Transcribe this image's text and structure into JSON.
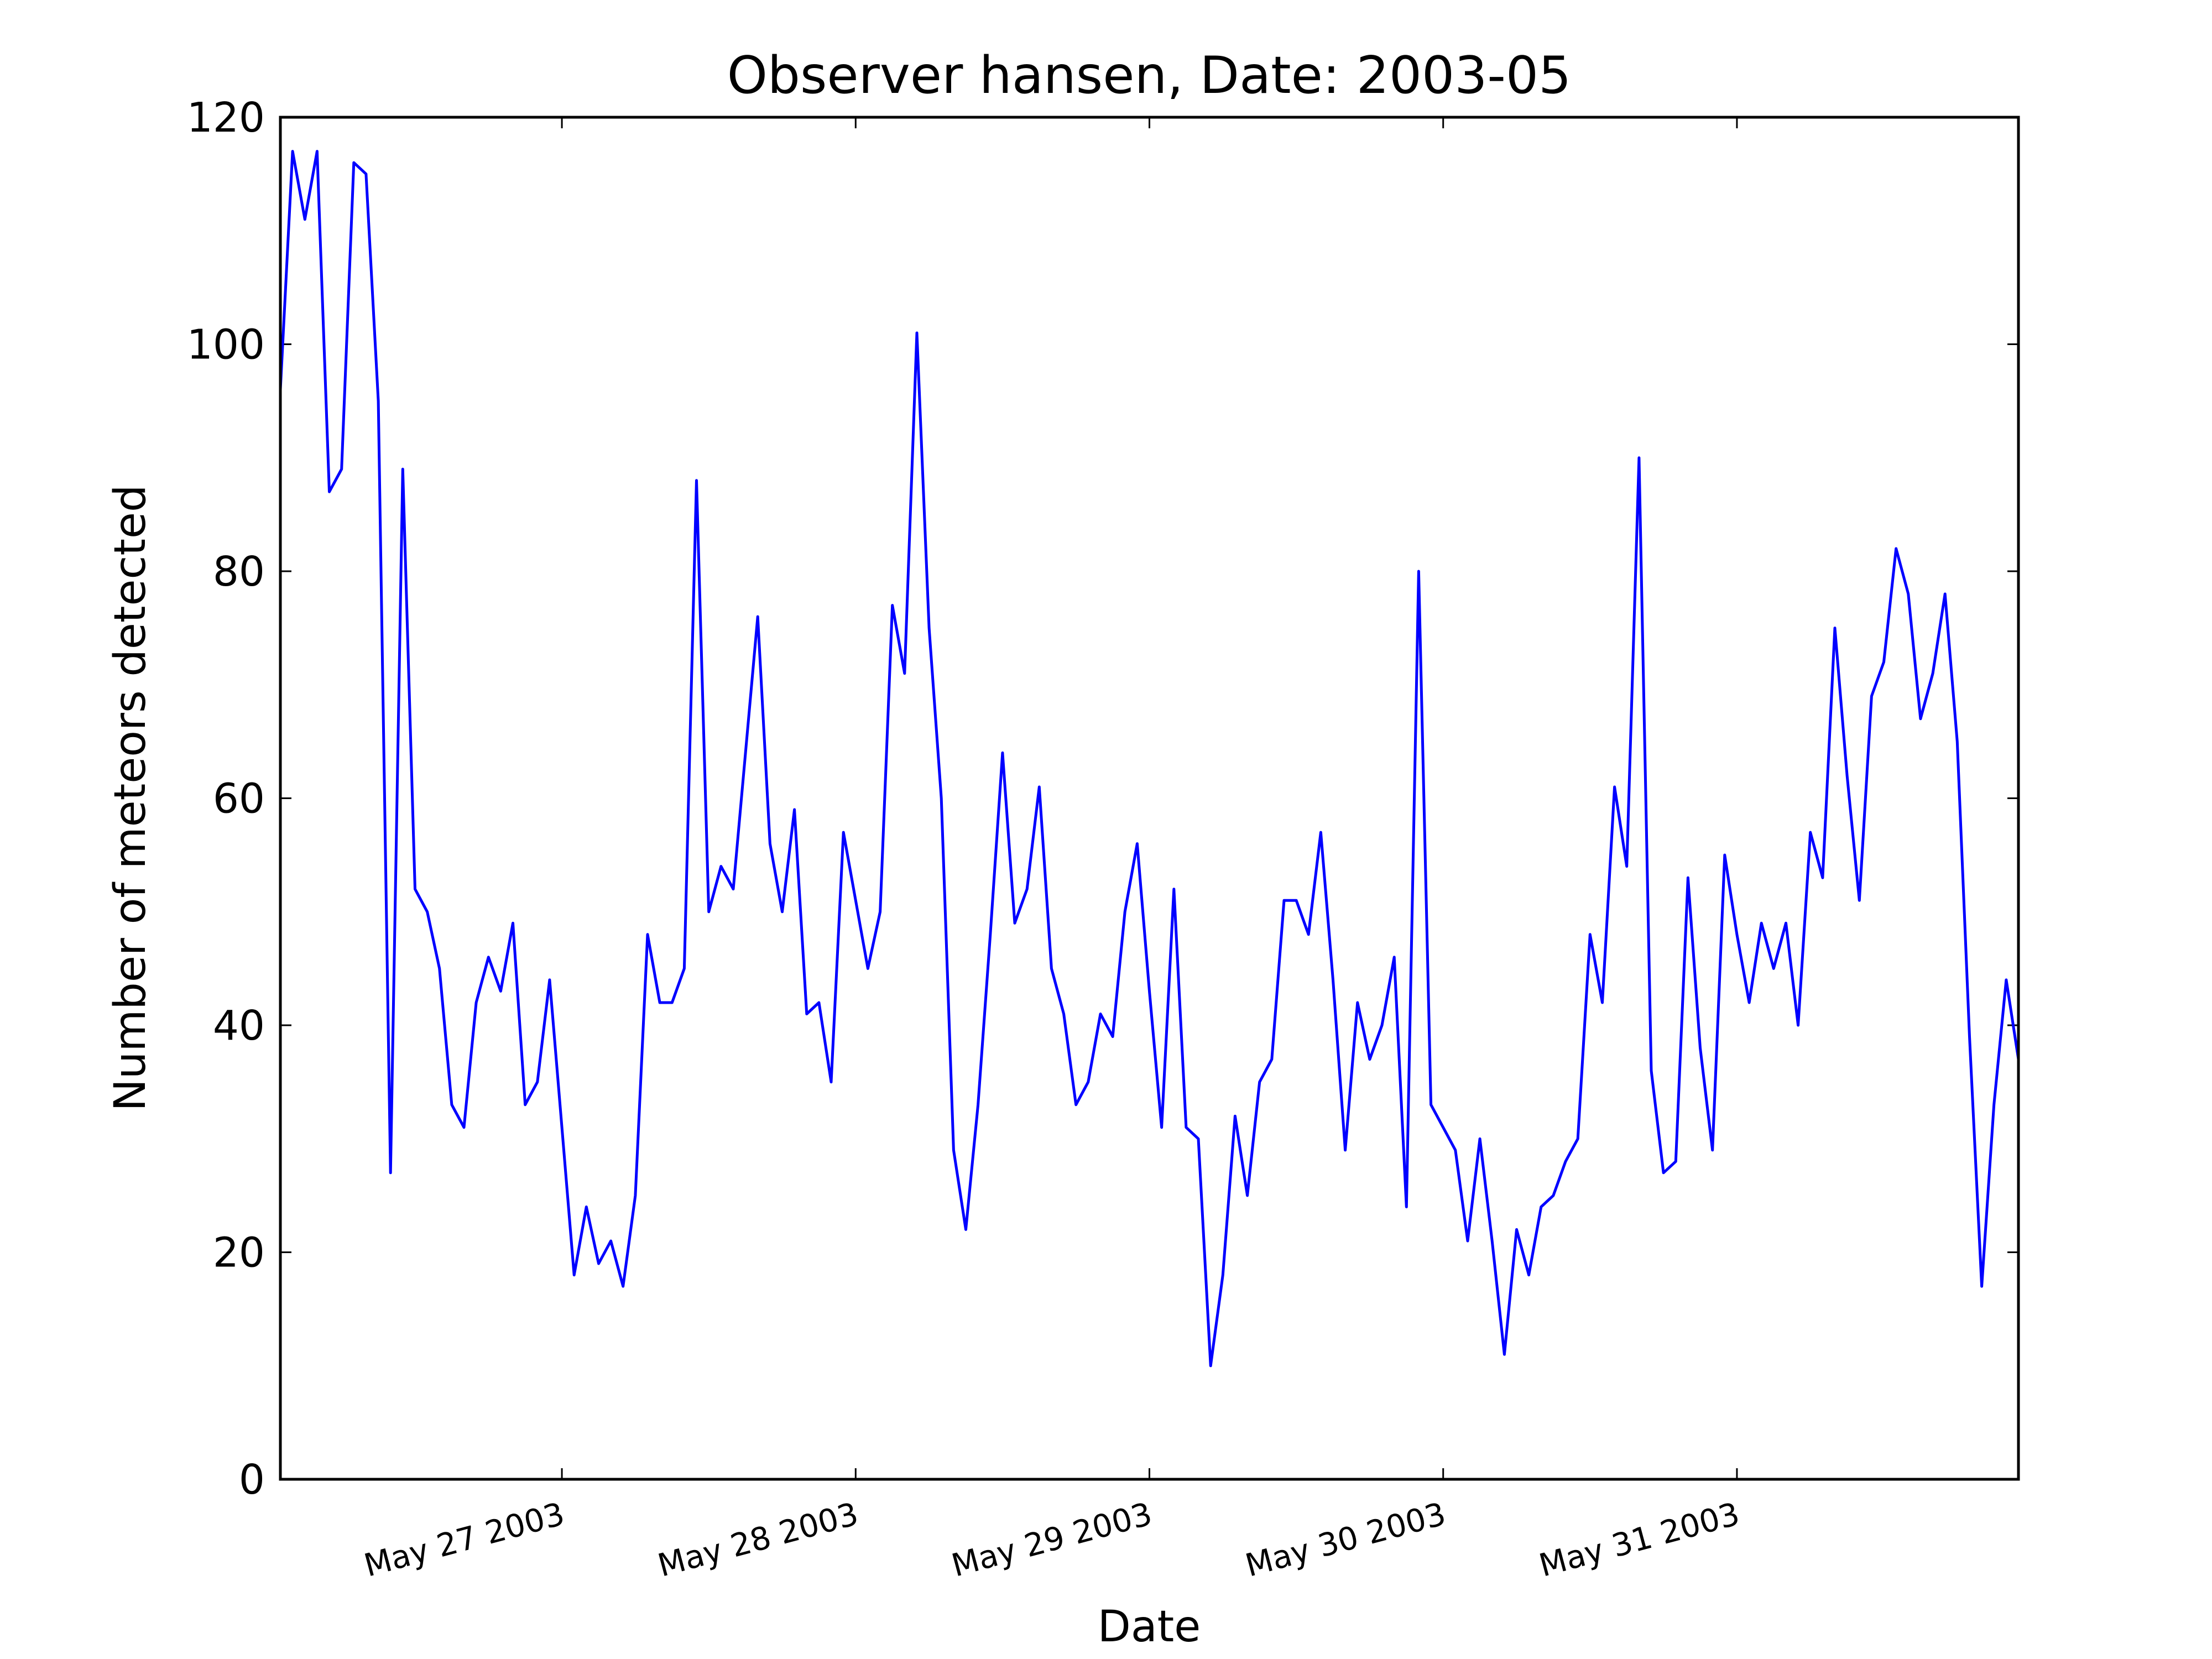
{
  "chart_data": {
    "type": "line",
    "title": "Observer hansen, Date: 2003-05",
    "x_label": "Date",
    "y_label": "Number of meteors detected",
    "x": [
      "2003-05-26 01:00",
      "2003-05-26 02:00",
      "2003-05-26 03:00",
      "2003-05-26 04:00",
      "2003-05-26 05:00",
      "2003-05-26 06:00",
      "2003-05-26 07:00",
      "2003-05-26 08:00",
      "2003-05-26 09:00",
      "2003-05-26 10:00",
      "2003-05-26 11:00",
      "2003-05-26 12:00",
      "2003-05-26 13:00",
      "2003-05-26 14:00",
      "2003-05-26 15:00",
      "2003-05-26 16:00",
      "2003-05-26 17:00",
      "2003-05-26 18:00",
      "2003-05-26 19:00",
      "2003-05-26 20:00",
      "2003-05-26 21:00",
      "2003-05-26 22:00",
      "2003-05-26 23:00",
      "2003-05-27 00:00",
      "2003-05-27 01:00",
      "2003-05-27 02:00",
      "2003-05-27 03:00",
      "2003-05-27 04:00",
      "2003-05-27 05:00",
      "2003-05-27 06:00",
      "2003-05-27 07:00",
      "2003-05-27 08:00",
      "2003-05-27 09:00",
      "2003-05-27 10:00",
      "2003-05-27 11:00",
      "2003-05-27 12:00",
      "2003-05-27 13:00",
      "2003-05-27 14:00",
      "2003-05-27 15:00",
      "2003-05-27 16:00",
      "2003-05-27 17:00",
      "2003-05-27 18:00",
      "2003-05-27 19:00",
      "2003-05-27 20:00",
      "2003-05-27 21:00",
      "2003-05-27 22:00",
      "2003-05-27 23:00",
      "2003-05-28 00:00",
      "2003-05-28 01:00",
      "2003-05-28 02:00",
      "2003-05-28 03:00",
      "2003-05-28 04:00",
      "2003-05-28 05:00",
      "2003-05-28 06:00",
      "2003-05-28 07:00",
      "2003-05-28 08:00",
      "2003-05-28 09:00",
      "2003-05-28 10:00",
      "2003-05-28 11:00",
      "2003-05-28 12:00",
      "2003-05-28 13:00",
      "2003-05-28 14:00",
      "2003-05-28 15:00",
      "2003-05-28 16:00",
      "2003-05-28 17:00",
      "2003-05-28 18:00",
      "2003-05-28 19:00",
      "2003-05-28 20:00",
      "2003-05-28 21:00",
      "2003-05-28 22:00",
      "2003-05-28 23:00",
      "2003-05-29 00:00",
      "2003-05-29 01:00",
      "2003-05-29 02:00",
      "2003-05-29 03:00",
      "2003-05-29 04:00",
      "2003-05-29 05:00",
      "2003-05-29 06:00",
      "2003-05-29 07:00",
      "2003-05-29 08:00",
      "2003-05-29 09:00",
      "2003-05-29 10:00",
      "2003-05-29 11:00",
      "2003-05-29 12:00",
      "2003-05-29 13:00",
      "2003-05-29 14:00",
      "2003-05-29 15:00",
      "2003-05-29 16:00",
      "2003-05-29 17:00",
      "2003-05-29 18:00",
      "2003-05-29 19:00",
      "2003-05-29 20:00",
      "2003-05-29 21:00",
      "2003-05-29 22:00",
      "2003-05-29 23:00",
      "2003-05-30 00:00",
      "2003-05-30 01:00",
      "2003-05-30 02:00",
      "2003-05-30 03:00",
      "2003-05-30 04:00",
      "2003-05-30 05:00",
      "2003-05-30 06:00",
      "2003-05-30 07:00",
      "2003-05-30 08:00",
      "2003-05-30 09:00",
      "2003-05-30 10:00",
      "2003-05-30 11:00",
      "2003-05-30 12:00",
      "2003-05-30 13:00",
      "2003-05-30 14:00",
      "2003-05-30 15:00",
      "2003-05-30 16:00",
      "2003-05-30 17:00",
      "2003-05-30 18:00",
      "2003-05-30 19:00",
      "2003-05-30 20:00",
      "2003-05-30 21:00",
      "2003-05-30 22:00",
      "2003-05-30 23:00",
      "2003-05-31 00:00",
      "2003-05-31 01:00",
      "2003-05-31 02:00",
      "2003-05-31 03:00",
      "2003-05-31 04:00",
      "2003-05-31 05:00",
      "2003-05-31 06:00",
      "2003-05-31 07:00",
      "2003-05-31 08:00",
      "2003-05-31 09:00",
      "2003-05-31 10:00",
      "2003-05-31 11:00",
      "2003-05-31 12:00",
      "2003-05-31 13:00",
      "2003-05-31 14:00",
      "2003-05-31 15:00",
      "2003-05-31 16:00",
      "2003-05-31 17:00",
      "2003-05-31 18:00",
      "2003-05-31 19:00",
      "2003-05-31 20:00",
      "2003-05-31 21:00",
      "2003-05-31 22:00",
      "2003-05-31 23:00"
    ],
    "values": [
      96,
      117,
      111,
      117,
      87,
      89,
      116,
      115,
      95,
      27,
      89,
      52,
      50,
      45,
      33,
      31,
      42,
      46,
      43,
      49,
      33,
      35,
      44,
      31,
      18,
      24,
      19,
      21,
      17,
      25,
      48,
      42,
      42,
      45,
      88,
      50,
      54,
      52,
      64,
      76,
      56,
      50,
      59,
      41,
      42,
      35,
      57,
      51,
      45,
      50,
      77,
      71,
      101,
      75,
      60,
      29,
      22,
      33,
      48,
      64,
      49,
      52,
      61,
      45,
      41,
      33,
      35,
      41,
      39,
      50,
      56,
      43,
      31,
      52,
      31,
      30,
      10,
      18,
      32,
      25,
      35,
      37,
      51,
      51,
      48,
      57,
      44,
      29,
      42,
      37,
      40,
      46,
      24,
      80,
      33,
      31,
      29,
      21,
      30,
      21,
      11,
      22,
      18,
      24,
      25,
      28,
      30,
      48,
      42,
      61,
      54,
      90,
      36,
      27,
      28,
      53,
      38,
      29,
      55,
      48,
      42,
      49,
      45,
      49,
      40,
      57,
      53,
      75,
      62,
      51,
      69,
      72,
      82,
      78,
      67,
      71,
      78,
      65,
      39,
      17,
      33,
      44,
      37
    ],
    "color": "#0000ff",
    "xlim": [
      "2003-05-26 01:00",
      "2003-05-31 23:00"
    ],
    "xticks": [
      {
        "value": "2003-05-27 00:00",
        "label": "May 27 2003"
      },
      {
        "value": "2003-05-28 00:00",
        "label": "May 28 2003"
      },
      {
        "value": "2003-05-29 00:00",
        "label": "May 29 2003"
      },
      {
        "value": "2003-05-30 00:00",
        "label": "May 30 2003"
      },
      {
        "value": "2003-05-31 00:00",
        "label": "May 31 2003"
      }
    ],
    "ylim": [
      0,
      120
    ],
    "yticks": [
      0,
      20,
      40,
      60,
      80,
      100,
      120
    ],
    "grid": false
  }
}
